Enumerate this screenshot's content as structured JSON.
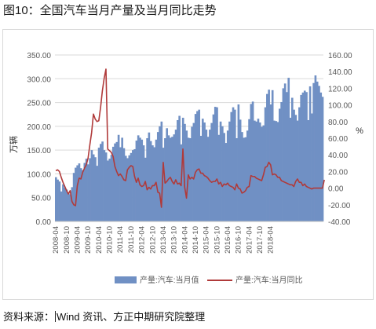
{
  "figure": {
    "title": "图10：全国汽车当月产量及当月同比走势",
    "source_label": "资料来源：",
    "source_text": "Wind 资讯、方正中期研究院整理"
  },
  "chart_data": {
    "type": "area",
    "ylabel": "万辆",
    "y2label": "%",
    "ylim": [
      0,
      350
    ],
    "y2lim": [
      -40,
      160
    ],
    "yticks": [
      "350.00",
      "300.00",
      "250.00",
      "200.00",
      "150.00",
      "100.00",
      "50.00",
      "0.00"
    ],
    "y2ticks": [
      "160.00",
      "140.00",
      "120.00",
      "100.00",
      "80.00",
      "60.00",
      "40.00",
      "20.00",
      "0.00",
      "-20.00",
      "-40.00"
    ],
    "xticks": [
      "2008-04",
      "2008-10",
      "2009-04",
      "2009-10",
      "2010-04",
      "2010-10",
      "2011-04",
      "2011-10",
      "2012-04",
      "2012-10",
      "2013-04",
      "2013-10",
      "2014-04",
      "2014-10",
      "2015-04",
      "2015-10",
      "2016-04",
      "2016-10",
      "2017-04",
      "2017-10",
      "2018-04"
    ],
    "grid": true,
    "legend_position": "bottom",
    "colors": {
      "production": "#7090c4",
      "yoy": "#b03a3a",
      "grid": "#d9d9d9"
    },
    "series": [
      {
        "name": "产量:汽车:当月值",
        "axis": "left",
        "values": [
          93,
          88,
          84,
          63,
          78,
          71,
          67,
          59,
          57,
          72,
          102,
          113,
          118,
          122,
          112,
          108,
          123,
          132,
          120,
          133,
          150,
          141,
          135,
          117,
          155,
          163,
          168,
          150,
          145,
          128,
          132,
          140,
          157,
          164,
          167,
          182,
          156,
          176,
          154,
          138,
          133,
          139,
          144,
          150,
          152,
          170,
          181,
          176,
          172,
          160,
          134,
          175,
          187,
          169,
          160,
          156,
          172,
          188,
          200,
          210,
          155,
          175,
          196,
          181,
          176,
          178,
          183,
          193,
          213,
          222,
          162,
          218,
          205,
          191,
          176,
          175,
          199,
          207,
          226,
          232,
          235,
          180,
          216,
          208,
          193,
          178,
          193,
          207,
          225,
          241,
          240,
          182,
          210,
          200,
          186,
          165,
          191,
          210,
          230,
          240,
          235,
          175,
          246,
          214,
          188,
          176,
          177,
          191,
          215,
          247,
          252,
          212,
          210,
          216,
          208,
          199,
          202,
          240,
          268,
          277,
          246,
          276,
          212,
          211,
          209,
          237,
          251,
          280,
          290,
          272,
          302,
          218,
          260,
          235,
          224,
          212,
          240,
          266,
          271,
          275,
          272,
          213,
          284,
          227,
          291,
          307,
          294,
          285,
          271,
          262
        ]
      },
      {
        "name": "产量:汽车:当月同比",
        "axis": "right",
        "values": [
          21,
          22,
          20,
          13,
          7,
          2,
          -3,
          -7,
          -3,
          -16,
          -20,
          -21,
          3,
          12,
          11,
          19,
          24,
          28,
          36,
          52,
          67,
          89,
          83,
          80,
          81,
          97,
          117,
          132,
          143,
          47,
          45,
          43,
          38,
          26,
          20,
          15,
          17,
          14,
          10,
          9,
          22,
          25,
          27,
          26,
          14,
          7,
          12,
          4,
          2,
          3,
          8,
          -2,
          1,
          -1,
          3,
          3,
          7,
          -5,
          -6,
          -23,
          31,
          6,
          8,
          11,
          13,
          8,
          5,
          10,
          5,
          6,
          3,
          47,
          1,
          -12,
          16,
          11,
          13,
          11,
          19,
          22,
          23,
          18,
          18,
          15,
          14,
          12,
          9,
          7,
          8,
          8,
          11,
          5,
          7,
          2,
          5,
          4,
          6,
          3,
          2,
          1,
          -2,
          5,
          0,
          -1,
          -6,
          -5,
          -3,
          1,
          2,
          15,
          14,
          14,
          12,
          11,
          10,
          9,
          16,
          25,
          26,
          31,
          28,
          16,
          17,
          16,
          13,
          13,
          9,
          8,
          7,
          6,
          5,
          4,
          4,
          2,
          8,
          11,
          7,
          7,
          3,
          5,
          2,
          1,
          0,
          -1,
          0,
          0,
          0,
          0,
          0,
          0,
          10
        ]
      }
    ]
  }
}
